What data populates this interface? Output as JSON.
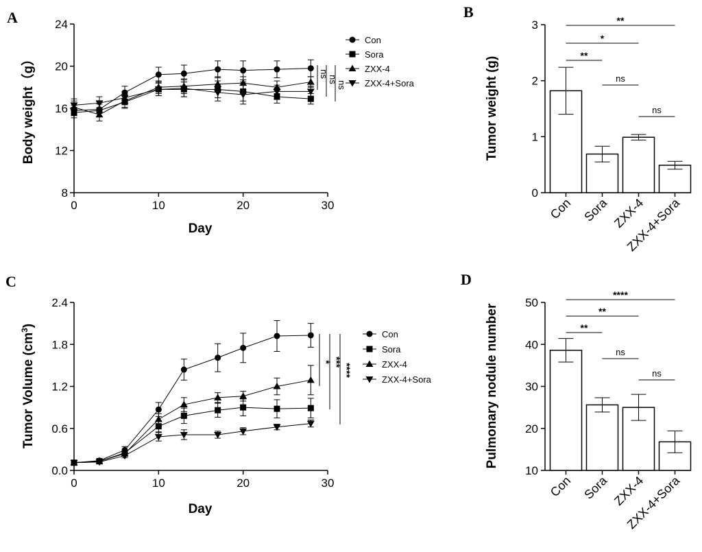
{
  "figure": {
    "letters": [
      "A",
      "B",
      "C",
      "D"
    ]
  },
  "chart_data": [
    {
      "panel": "A",
      "type": "line",
      "xlabel": "Day",
      "ylabel": "Body weight（g）",
      "xlim": [
        0,
        30
      ],
      "ylim": [
        8,
        24
      ],
      "xticks": [
        0,
        10,
        20,
        30
      ],
      "yticks": [
        8,
        12,
        16,
        20,
        24
      ],
      "x": [
        0,
        3,
        6,
        10,
        13,
        17,
        20,
        24,
        28
      ],
      "series": [
        {
          "name": "Con",
          "marker": "circle",
          "values": [
            15.8,
            15.9,
            17.5,
            19.2,
            19.3,
            19.7,
            19.6,
            19.7,
            19.8
          ],
          "errors": [
            0.5,
            0.7,
            0.6,
            0.7,
            0.8,
            0.8,
            0.9,
            0.8,
            0.8
          ]
        },
        {
          "name": "Sora",
          "marker": "square",
          "values": [
            15.6,
            15.8,
            16.6,
            17.8,
            17.8,
            17.8,
            17.6,
            17.1,
            16.9
          ],
          "errors": [
            0.5,
            0.6,
            0.6,
            0.6,
            0.7,
            0.8,
            0.9,
            0.6,
            0.5
          ]
        },
        {
          "name": "ZXX-4",
          "marker": "triangle-up",
          "values": [
            16.1,
            15.4,
            16.7,
            18.0,
            18.1,
            18.3,
            18.4,
            18.0,
            18.5
          ],
          "errors": [
            0.6,
            0.6,
            0.6,
            0.6,
            0.7,
            0.7,
            0.6,
            0.6,
            0.5
          ]
        },
        {
          "name": "ZXX-4+Sora",
          "marker": "triangle-down",
          "values": [
            16.3,
            16.5,
            17.0,
            17.8,
            17.9,
            17.5,
            17.3,
            17.6,
            17.6
          ],
          "errors": [
            0.6,
            0.6,
            0.6,
            0.6,
            0.8,
            0.8,
            0.9,
            0.6,
            0.5
          ]
        }
      ],
      "significance": [
        "ns",
        "ns",
        "ns"
      ]
    },
    {
      "panel": "B",
      "type": "bar",
      "ylabel": "Tumor weight (g)",
      "ylim": [
        0,
        3
      ],
      "yticks": [
        0,
        1,
        2,
        3
      ],
      "categories": [
        "Con",
        "Sora",
        "ZXX-4",
        "ZXX-4+Sora"
      ],
      "values": [
        1.82,
        0.69,
        0.99,
        0.49
      ],
      "errors": [
        0.42,
        0.14,
        0.05,
        0.07
      ],
      "significance": [
        {
          "from": 0,
          "to": 1,
          "label": "**"
        },
        {
          "from": 1,
          "to": 2,
          "label": "ns"
        },
        {
          "from": 2,
          "to": 3,
          "label": "ns"
        },
        {
          "from": 0,
          "to": 2,
          "label": "*"
        },
        {
          "from": 0,
          "to": 3,
          "label": "**"
        }
      ]
    },
    {
      "panel": "C",
      "type": "line",
      "xlabel": "Day",
      "ylabel_main": "Tumor  Volume (cm",
      "ylabel_sup": "3",
      "ylabel_end": ")",
      "xlim": [
        0,
        30
      ],
      "ylim": [
        0,
        2.4
      ],
      "xticks": [
        0,
        10,
        20,
        30
      ],
      "yticks": [
        "0.0",
        "0.6",
        "1.2",
        "1.8",
        "2.4"
      ],
      "x": [
        0,
        3,
        6,
        10,
        13,
        17,
        20,
        24,
        28
      ],
      "series": [
        {
          "name": "Con",
          "marker": "circle",
          "values": [
            0.11,
            0.14,
            0.29,
            0.87,
            1.44,
            1.61,
            1.75,
            1.92,
            1.93
          ],
          "errors": [
            0.02,
            0.03,
            0.05,
            0.1,
            0.15,
            0.2,
            0.21,
            0.22,
            0.17
          ]
        },
        {
          "name": "Sora",
          "marker": "square",
          "values": [
            0.11,
            0.13,
            0.25,
            0.63,
            0.78,
            0.86,
            0.9,
            0.88,
            0.89
          ],
          "errors": [
            0.02,
            0.03,
            0.04,
            0.08,
            0.11,
            0.1,
            0.12,
            0.13,
            0.14
          ]
        },
        {
          "name": "ZXX-4",
          "marker": "triangle-up",
          "values": [
            0.11,
            0.13,
            0.24,
            0.73,
            0.94,
            1.04,
            1.06,
            1.2,
            1.29
          ],
          "errors": [
            0.02,
            0.03,
            0.04,
            0.08,
            0.1,
            0.07,
            0.07,
            0.12,
            0.21
          ]
        },
        {
          "name": "ZXX-4+Sora",
          "marker": "triangle-down",
          "values": [
            0.11,
            0.12,
            0.21,
            0.48,
            0.51,
            0.51,
            0.56,
            0.62,
            0.67
          ],
          "errors": [
            0.02,
            0.02,
            0.03,
            0.06,
            0.07,
            0.05,
            0.05,
            0.04,
            0.05
          ]
        }
      ],
      "significance": [
        "*",
        "***",
        "****"
      ]
    },
    {
      "panel": "D",
      "type": "bar",
      "ylabel": "Pulmonary nodule number",
      "ylim": [
        10,
        50
      ],
      "yticks": [
        10,
        20,
        30,
        40,
        50
      ],
      "categories": [
        "Con",
        "Sora",
        "ZXX-4",
        "ZXX-4+Sora"
      ],
      "values": [
        38.6,
        25.6,
        25.0,
        16.8
      ],
      "errors": [
        2.8,
        1.7,
        3.1,
        2.6
      ],
      "significance": [
        {
          "from": 0,
          "to": 1,
          "label": "**"
        },
        {
          "from": 1,
          "to": 2,
          "label": "ns"
        },
        {
          "from": 2,
          "to": 3,
          "label": "ns"
        },
        {
          "from": 0,
          "to": 2,
          "label": "**"
        },
        {
          "from": 0,
          "to": 3,
          "label": "****"
        }
      ]
    }
  ]
}
